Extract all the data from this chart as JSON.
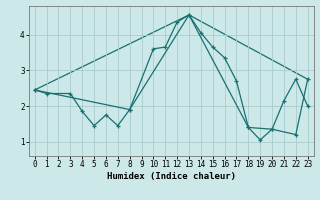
{
  "xlabel": "Humidex (Indice chaleur)",
  "background_color": "#cce8e8",
  "grid_color": "#aacccc",
  "line_color": "#1a7070",
  "xlim": [
    -0.5,
    23.5
  ],
  "ylim": [
    0.6,
    4.8
  ],
  "xticks": [
    0,
    1,
    2,
    3,
    4,
    5,
    6,
    7,
    8,
    9,
    10,
    11,
    12,
    13,
    14,
    15,
    16,
    17,
    18,
    19,
    20,
    21,
    22,
    23
  ],
  "yticks": [
    1,
    2,
    3,
    4
  ],
  "series1_x": [
    0,
    1,
    3,
    4,
    5,
    6,
    7,
    8,
    10,
    11,
    12,
    13,
    14,
    15,
    16,
    17,
    18,
    19,
    20,
    21,
    22,
    23
  ],
  "series1_y": [
    2.45,
    2.35,
    2.35,
    1.85,
    1.45,
    1.75,
    1.45,
    1.9,
    3.6,
    3.65,
    4.35,
    4.55,
    4.05,
    3.65,
    3.35,
    2.7,
    1.4,
    1.05,
    1.35,
    2.15,
    2.75,
    2.0
  ],
  "series2_x": [
    0,
    8,
    13,
    18,
    20,
    22,
    23
  ],
  "series2_y": [
    2.45,
    1.9,
    4.55,
    1.4,
    1.35,
    1.2,
    2.75
  ],
  "series3_x": [
    0,
    13,
    23
  ],
  "series3_y": [
    2.45,
    4.55,
    2.75
  ]
}
